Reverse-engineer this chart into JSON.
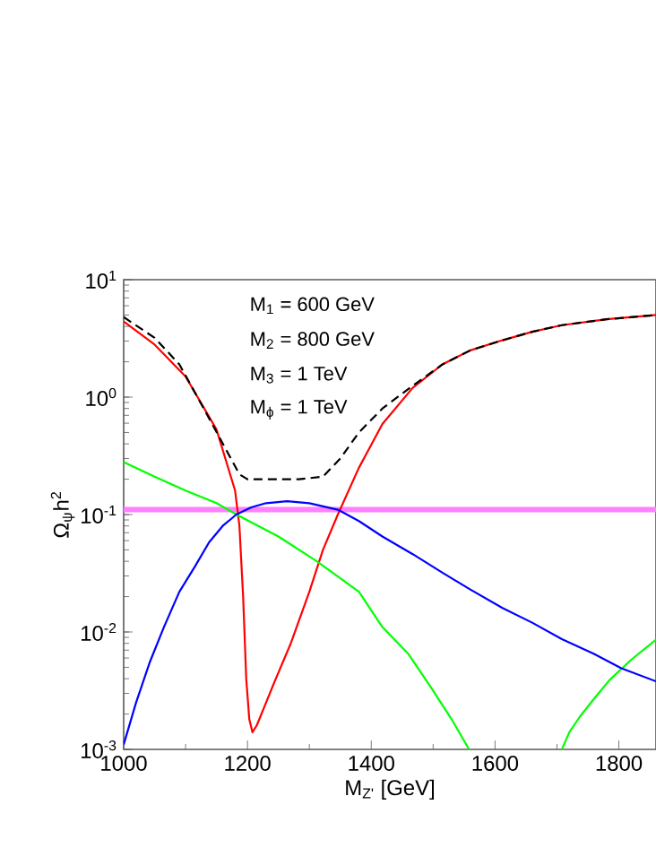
{
  "chart_data": {
    "type": "line",
    "xlabel": "M$_{Z'}$ [GeV]",
    "ylabel": "Ω$_{ψ}$h$^{2}$",
    "log": "y",
    "xlim": [
      1000,
      1860
    ],
    "ylim": [
      0.001,
      10
    ],
    "xticks": [
      1000,
      1200,
      1400,
      1600,
      1800
    ],
    "yticks": [
      {
        "value": 0.001,
        "label": "10$^{-3}$"
      },
      {
        "value": 0.01,
        "label": "10$^{-2}$"
      },
      {
        "value": 0.1,
        "label": "10$^{-1}$"
      },
      {
        "value": 1,
        "label": "10$^{0}$"
      },
      {
        "value": 10,
        "label": "10$^{1}$"
      }
    ],
    "grid": false,
    "marker": "none",
    "annotations": [
      "M$_{1}$ = 600 GeV",
      "M$_{2}$ = 800 GeV",
      "M$_{3}$ = 1 TeV",
      "M$_{ϕ}$ = 1 TeV"
    ],
    "ref_lines": [
      {
        "axis": "y",
        "value": 0.11,
        "color": "#ff80ff"
      }
    ],
    "series": [
      {
        "color": "#ff0000",
        "line_style": "solid",
        "x": [
          1000,
          1050,
          1100,
          1150,
          1180,
          1187,
          1193,
          1198,
          1203,
          1208,
          1215,
          1230,
          1244,
          1270,
          1300,
          1322,
          1346,
          1380,
          1418,
          1467,
          1515,
          1560,
          1612,
          1660,
          1708,
          1780,
          1860
        ],
        "values": [
          4.4,
          2.8,
          1.5,
          0.53,
          0.16,
          0.08,
          0.02,
          0.004,
          0.0018,
          0.0014,
          0.0016,
          0.0025,
          0.0038,
          0.008,
          0.022,
          0.05,
          0.1,
          0.25,
          0.59,
          1.2,
          1.9,
          2.5,
          3.05,
          3.6,
          4.1,
          4.6,
          5.0
        ]
      },
      {
        "color": "#000000",
        "line_style": "dashed",
        "x": [
          1000,
          1050,
          1090,
          1138,
          1187,
          1200,
          1240,
          1283,
          1322,
          1350,
          1380,
          1418,
          1467,
          1515,
          1560,
          1612,
          1660,
          1708,
          1780,
          1860
        ],
        "values": [
          4.8,
          3.2,
          1.9,
          0.66,
          0.22,
          0.2,
          0.2,
          0.2,
          0.21,
          0.3,
          0.5,
          0.8,
          1.25,
          1.9,
          2.5,
          3.05,
          3.6,
          4.1,
          4.6,
          5.0
        ]
      },
      {
        "color": "#00ff00",
        "line_style": "solid",
        "x": [
          1000,
          1050,
          1100,
          1150,
          1187,
          1250,
          1312,
          1380,
          1418,
          1460,
          1496,
          1530,
          1558
        ],
        "values": [
          0.28,
          0.21,
          0.16,
          0.125,
          0.097,
          0.065,
          0.04,
          0.022,
          0.011,
          0.0065,
          0.0034,
          0.0018,
          0.001
        ]
      },
      {
        "color": "#00ff00",
        "line_style": "solid",
        "x": [
          1708,
          1720,
          1737,
          1760,
          1785,
          1820,
          1860
        ],
        "values": [
          0.001,
          0.0014,
          0.0019,
          0.0027,
          0.0039,
          0.0058,
          0.0086
        ]
      },
      {
        "color": "#0000ff",
        "line_style": "solid",
        "x": [
          1000,
          1020,
          1042,
          1065,
          1090,
          1115,
          1138,
          1160,
          1182,
          1206,
          1230,
          1264,
          1300,
          1346,
          1380,
          1418,
          1467,
          1515,
          1560,
          1612,
          1660,
          1708,
          1760,
          1804,
          1860
        ],
        "values": [
          0.0011,
          0.0025,
          0.0055,
          0.011,
          0.022,
          0.036,
          0.058,
          0.08,
          0.1,
          0.115,
          0.125,
          0.13,
          0.125,
          0.11,
          0.088,
          0.065,
          0.046,
          0.032,
          0.023,
          0.016,
          0.012,
          0.0087,
          0.0065,
          0.0049,
          0.0038
        ]
      }
    ]
  }
}
